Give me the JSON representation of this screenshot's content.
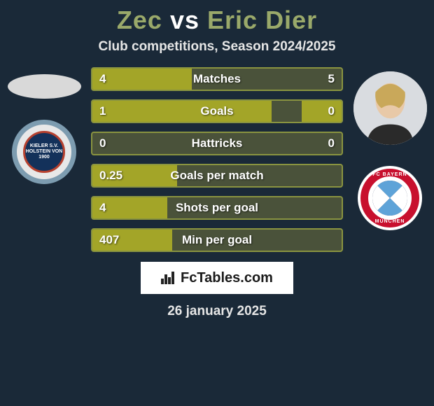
{
  "title": {
    "left_name": "Zec",
    "vs": "vs",
    "right_name": "Eric Dier",
    "title_color": "#9aa96a",
    "vs_color": "#ffffff",
    "title_fontsize": 36
  },
  "subtitle": "Club competitions, Season 2024/2025",
  "background_color": "#1a2938",
  "players": {
    "left": {
      "name": "Zec",
      "avatar_shape": "ellipse",
      "club": "Holstein Kiel",
      "club_badge_text": "KIELER S.V. HOLSTEIN VON 1900",
      "club_colors": {
        "ring": "#7d9cb0",
        "inner_bg": "#13315a",
        "inner_border": "#b6412f"
      }
    },
    "right": {
      "name": "Eric Dier",
      "avatar_shape": "circle",
      "club": "FC Bayern München",
      "club_badge_top": "FC BAYERN",
      "club_badge_bottom": "MÜNCHEN",
      "club_colors": {
        "ring": "#c8102e",
        "diamond_a": "#5ea3d8",
        "diamond_b": "#ffffff"
      }
    }
  },
  "bars": {
    "track_color": "#4a523a",
    "border_color": "#8a9440",
    "fill_color": "#a3a528",
    "label_fontsize": 17,
    "rows": [
      {
        "label": "Matches",
        "left_val": "4",
        "right_val": "5",
        "left_pct": 40,
        "right_pct": 0
      },
      {
        "label": "Goals",
        "left_val": "1",
        "right_val": "0",
        "left_pct": 72,
        "right_pct": 16
      },
      {
        "label": "Hattricks",
        "left_val": "0",
        "right_val": "0",
        "left_pct": 0,
        "right_pct": 0
      },
      {
        "label": "Goals per match",
        "left_val": "0.25",
        "right_val": "",
        "left_pct": 34,
        "right_pct": 0
      },
      {
        "label": "Shots per goal",
        "left_val": "4",
        "right_val": "",
        "left_pct": 30,
        "right_pct": 0
      },
      {
        "label": "Min per goal",
        "left_val": "407",
        "right_val": "",
        "left_pct": 32,
        "right_pct": 0
      }
    ]
  },
  "footer": {
    "brand": "FcTables.com",
    "box_bg": "#ffffff",
    "text_color": "#1a1a1a"
  },
  "date": "26 january 2025"
}
